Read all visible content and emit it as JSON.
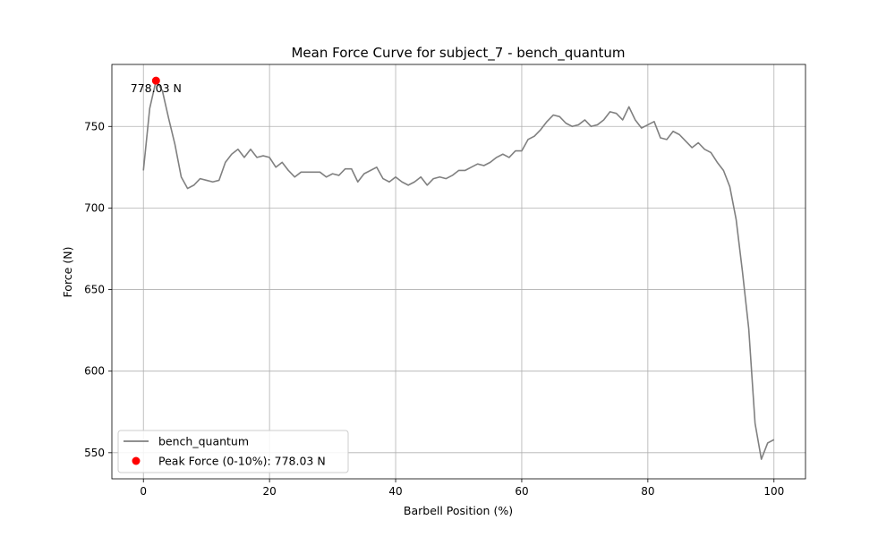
{
  "chart_data": {
    "type": "line",
    "title": "Mean Force Curve for subject_7 - bench_quantum",
    "xlabel": "Barbell Position (%)",
    "ylabel": "Force (N)",
    "xlim": [
      -5,
      105
    ],
    "ylim": [
      534,
      788
    ],
    "xticks": [
      0,
      20,
      40,
      60,
      80,
      100
    ],
    "yticks": [
      550,
      600,
      650,
      700,
      750
    ],
    "grid": true,
    "legend_position": "lower-left",
    "series": [
      {
        "name": "bench_quantum",
        "color": "#808080",
        "x": [
          0,
          1,
          2,
          3,
          4,
          5,
          6,
          7,
          8,
          9,
          10,
          11,
          12,
          13,
          14,
          15,
          16,
          17,
          18,
          19,
          20,
          21,
          22,
          23,
          24,
          25,
          26,
          27,
          28,
          29,
          30,
          31,
          32,
          33,
          34,
          35,
          36,
          37,
          38,
          39,
          40,
          41,
          42,
          43,
          44,
          45,
          46,
          47,
          48,
          49,
          50,
          51,
          52,
          53,
          54,
          55,
          56,
          57,
          58,
          59,
          60,
          61,
          62,
          63,
          64,
          65,
          66,
          67,
          68,
          69,
          70,
          71,
          72,
          73,
          74,
          75,
          76,
          77,
          78,
          79,
          80,
          81,
          82,
          83,
          84,
          85,
          86,
          87,
          88,
          89,
          90,
          91,
          92,
          93,
          94,
          95,
          96,
          97,
          98,
          99,
          100
        ],
        "y": [
          723,
          761,
          778,
          772,
          755,
          739,
          719,
          712,
          714,
          718,
          717,
          716,
          717,
          728,
          733,
          736,
          731,
          736,
          731,
          732,
          731,
          725,
          728,
          723,
          719,
          722,
          722,
          722,
          722,
          719,
          721,
          720,
          724,
          724,
          716,
          721,
          723,
          725,
          718,
          716,
          719,
          716,
          714,
          716,
          719,
          714,
          718,
          719,
          718,
          720,
          723,
          723,
          725,
          727,
          726,
          728,
          731,
          733,
          731,
          735,
          735,
          742,
          744,
          748,
          753,
          757,
          756,
          752,
          750,
          751,
          754,
          750,
          751,
          754,
          759,
          758,
          754,
          762,
          754,
          749,
          751,
          753,
          743,
          742,
          747,
          745,
          741,
          737,
          740,
          736,
          734,
          728,
          723,
          713,
          693,
          661,
          626,
          568,
          546,
          556,
          558
        ]
      }
    ],
    "peak": {
      "label": "Peak Force (0-10%): 778.03 N",
      "x": 2,
      "y": 778.03,
      "annotation": "778.03 N",
      "color": "#ff0000"
    }
  }
}
